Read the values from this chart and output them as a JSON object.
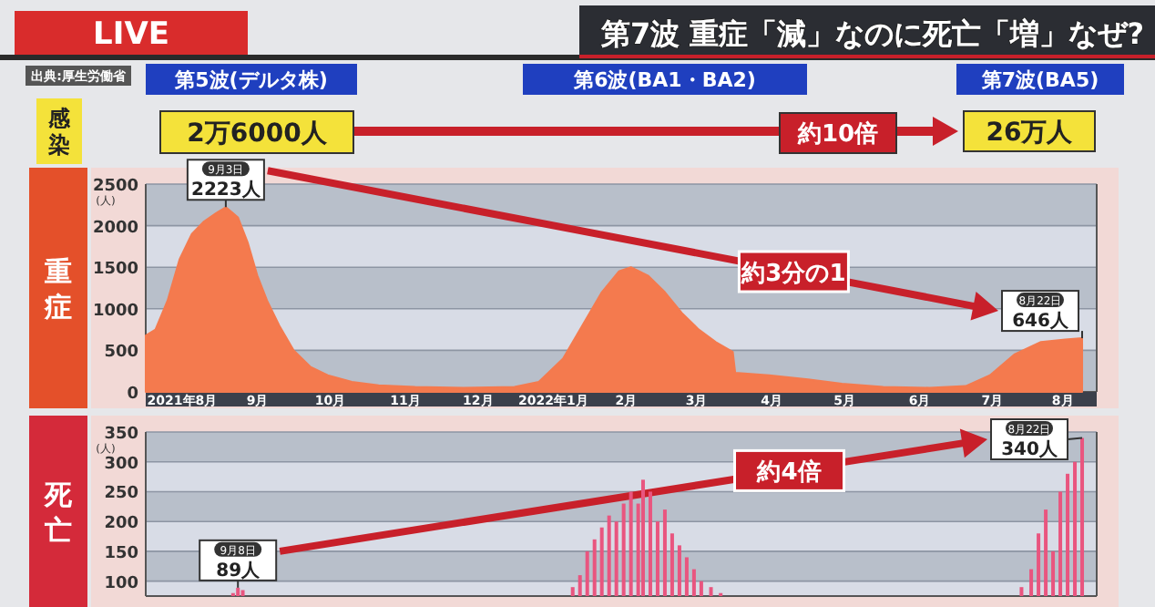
{
  "chart_data": [
    {
      "type": "other",
      "title": "第7波 重症「減」なのに死亡「増」なぜ?",
      "annotations": [
        "LIVE",
        "出典:厚生労働省",
        "第5波(デルタ株)",
        "第6波(BA1・BA2)",
        "第7波(BA5)",
        "感染",
        "2万6000人",
        "約10倍",
        "26万人"
      ]
    },
    {
      "type": "area",
      "ylabel": "重症",
      "color": "#f47a4e",
      "grid": true,
      "x": [
        "2021-08-01",
        "2021-08-05",
        "2021-08-10",
        "2021-08-15",
        "2021-08-20",
        "2021-08-25",
        "2021-08-30",
        "2021-09-03",
        "2021-09-08",
        "2021-09-12",
        "2021-09-16",
        "2021-09-20",
        "2021-09-25",
        "2021-10-01",
        "2021-10-08",
        "2021-10-15",
        "2021-10-25",
        "2021-11-05",
        "2021-11-20",
        "2021-12-10",
        "2021-12-31",
        "2022-01-10",
        "2022-01-20",
        "2022-01-28",
        "2022-02-05",
        "2022-02-12",
        "2022-02-17",
        "2022-02-24",
        "2022-03-03",
        "2022-03-10",
        "2022-03-17",
        "2022-03-24",
        "2022-03-31",
        "2022-04-01",
        "2022-04-15",
        "2022-05-01",
        "2022-05-15",
        "2022-06-01",
        "2022-06-20",
        "2022-07-05",
        "2022-07-15",
        "2022-07-25",
        "2022-08-05",
        "2022-08-15",
        "2022-08-22"
      ],
      "values": [
        680,
        750,
        1100,
        1600,
        1900,
        2050,
        2150,
        2223,
        2100,
        1800,
        1400,
        1100,
        800,
        500,
        300,
        200,
        120,
        80,
        60,
        50,
        60,
        120,
        400,
        800,
        1200,
        1450,
        1500,
        1400,
        1200,
        950,
        750,
        600,
        480,
        230,
        200,
        150,
        100,
        60,
        50,
        70,
        200,
        450,
        600,
        630,
        646
      ],
      "xlim": [
        "2021-08-01",
        "2022-08-28"
      ],
      "ylim": [
        0,
        2500
      ],
      "yticks": [
        0,
        500,
        1000,
        1500,
        2000,
        2500
      ],
      "xticks": [
        {
          "value": "2021-08-16",
          "label": "2021年8月"
        },
        {
          "value": "2021-09-16",
          "label": "9月"
        },
        {
          "value": "2021-10-16",
          "label": "10月"
        },
        {
          "value": "2021-11-16",
          "label": "11月"
        },
        {
          "value": "2021-12-16",
          "label": "12月"
        },
        {
          "value": "2022-01-16",
          "label": "2022年1月"
        },
        {
          "value": "2022-02-15",
          "label": "2月"
        },
        {
          "value": "2022-03-16",
          "label": "3月"
        },
        {
          "value": "2022-04-16",
          "label": "4月"
        },
        {
          "value": "2022-05-16",
          "label": "5月"
        },
        {
          "value": "2022-06-16",
          "label": "6月"
        },
        {
          "value": "2022-07-16",
          "label": "7月"
        },
        {
          "value": "2022-08-14",
          "label": "8月"
        }
      ],
      "annotations": [
        {
          "text": "9月3日\n2223人",
          "x": "2021-09-03",
          "y": 2223
        },
        {
          "text": "8月22日\n646人",
          "x": "2022-08-22",
          "y": 646
        },
        "約3分の1",
        "(人)"
      ]
    },
    {
      "type": "bar",
      "ylabel": "死亡",
      "color": "#e9557f",
      "grid": true,
      "tick_labels": "y",
      "x": [
        "2021-09-06",
        "2021-09-08",
        "2021-09-10",
        "2022-01-24",
        "2022-01-27",
        "2022-01-30",
        "2022-02-02",
        "2022-02-05",
        "2022-02-08",
        "2022-02-11",
        "2022-02-14",
        "2022-02-17",
        "2022-02-20",
        "2022-02-22",
        "2022-02-25",
        "2022-02-28",
        "2022-03-03",
        "2022-03-06",
        "2022-03-09",
        "2022-03-12",
        "2022-03-15",
        "2022-03-18",
        "2022-03-22",
        "2022-03-26",
        "2022-07-28",
        "2022-08-01",
        "2022-08-04",
        "2022-08-07",
        "2022-08-10",
        "2022-08-13",
        "2022-08-16",
        "2022-08-19",
        "2022-08-22"
      ],
      "values": [
        80,
        89,
        85,
        90,
        110,
        150,
        170,
        190,
        210,
        200,
        230,
        250,
        230,
        270,
        250,
        200,
        220,
        180,
        160,
        140,
        120,
        100,
        90,
        80,
        90,
        120,
        180,
        220,
        150,
        250,
        280,
        300,
        340
      ],
      "xlim": [
        "2021-08-01",
        "2022-08-28"
      ],
      "ylim": [
        75,
        350
      ],
      "yticks": [
        100,
        150,
        200,
        250,
        300,
        350
      ],
      "annotations": [
        {
          "text": "9月8日\n89人",
          "x": "2021-09-08",
          "y": 89
        },
        {
          "text": "8月22日\n340人",
          "x": "2022-08-22",
          "y": 340
        },
        "約4倍",
        "(人)"
      ]
    }
  ]
}
